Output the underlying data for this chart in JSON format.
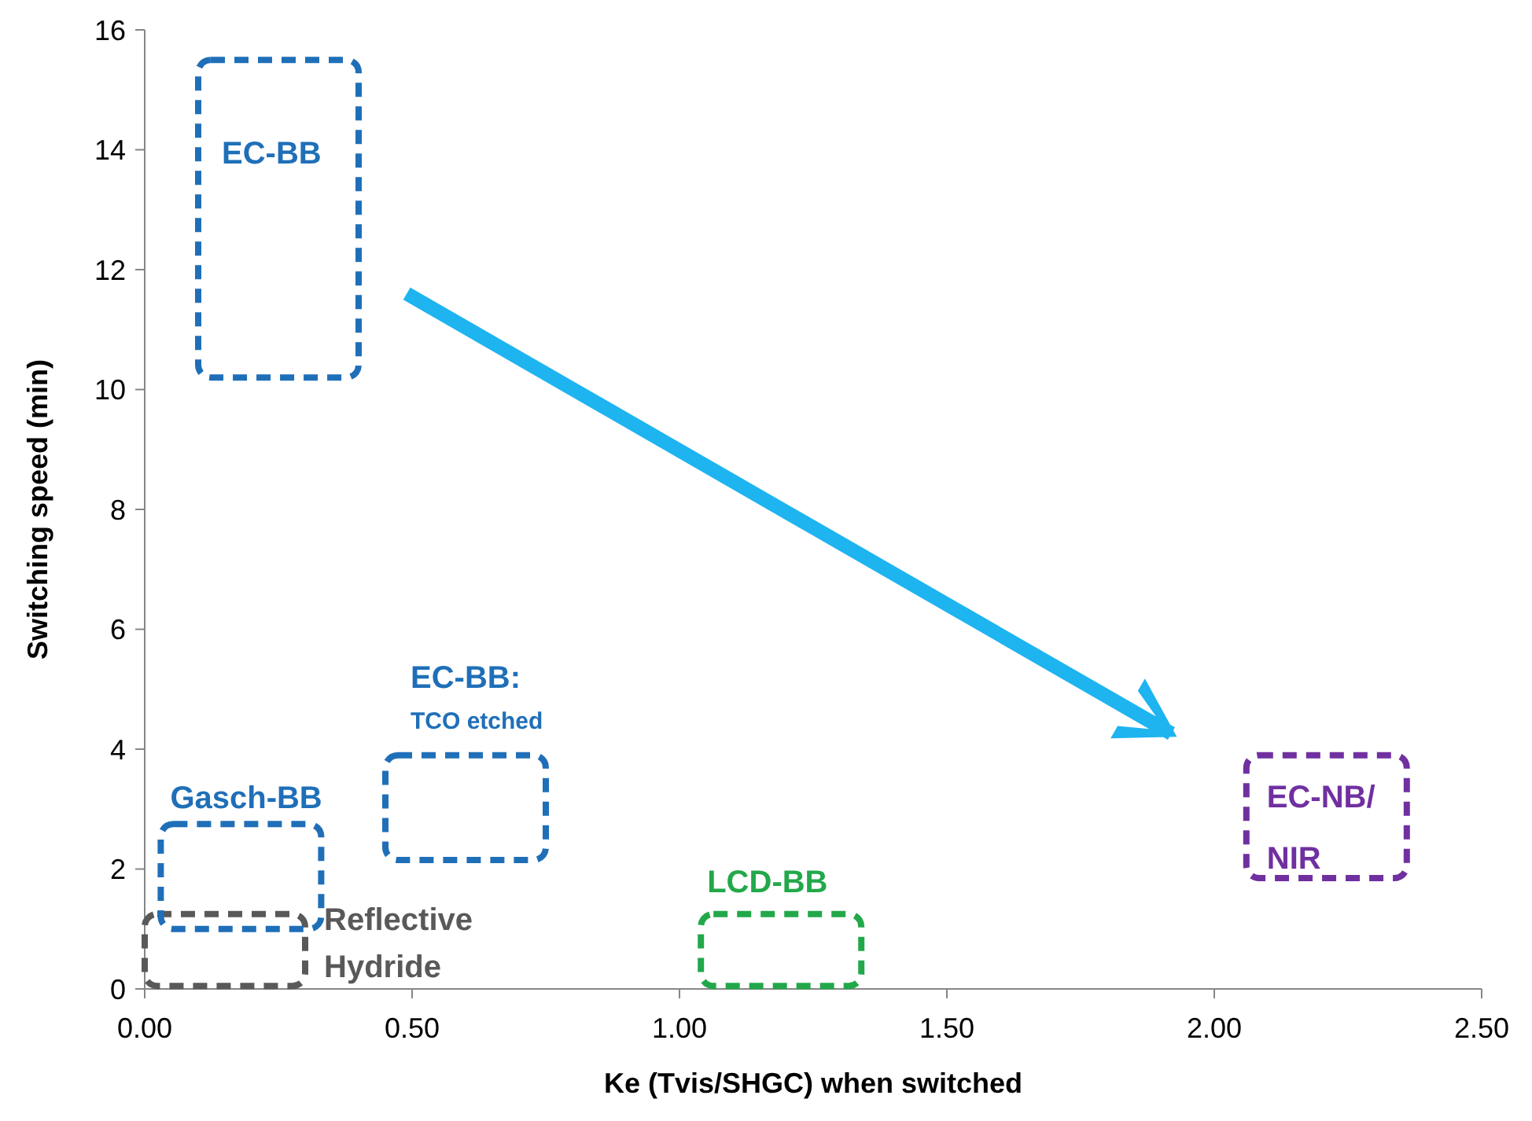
{
  "chart_data": {
    "type": "bar",
    "xlabel": "Ke (Tvis/SHGC) when switched",
    "ylabel": "Switching speed (min)",
    "xlim": [
      0,
      2.5
    ],
    "xticks": [
      {
        "value": 0,
        "label": "0.00"
      },
      {
        "value": 0.5,
        "label": "0.50"
      },
      {
        "value": 1,
        "label": "1.00"
      },
      {
        "value": 1.5,
        "label": "1.50"
      },
      {
        "value": 2,
        "label": "2.00"
      },
      {
        "value": 2.5,
        "label": "2.50"
      }
    ],
    "ylim": [
      0,
      16
    ],
    "yticks": [
      0,
      2,
      4,
      6,
      8,
      10,
      12,
      14,
      16
    ],
    "line_style": "dashed",
    "x": [
      0.15,
      0.18,
      0.25,
      0.6,
      1.19,
      2.21
    ],
    "base": [
      0.05,
      1.0,
      10.2,
      2.15,
      0.05,
      1.85
    ],
    "values": [
      1.2,
      1.75,
      5.3,
      1.75,
      1.2,
      2.05
    ],
    "colors": [
      "#595959",
      "#1f6fb8",
      "#1f6fb8",
      "#1f6fb8",
      "#22a84a",
      "#7030a0"
    ],
    "annotations": [
      {
        "text": "EC-BB",
        "x": 0.25,
        "y": 15.5
      },
      {
        "text": "EC-BB: TCO etched",
        "x": 0.6,
        "y": 3.9
      },
      {
        "text": "Gasch-BB",
        "x": 0.18,
        "y": 2.75
      },
      {
        "text": "Reflective Hydride",
        "x": 0.3,
        "y": 1.25
      },
      {
        "text": "LCD-BB",
        "x": 1.19,
        "y": 1.25
      },
      {
        "text": "EC-NB/NIR",
        "x": 2.21,
        "y": 3.9
      }
    ]
  }
}
